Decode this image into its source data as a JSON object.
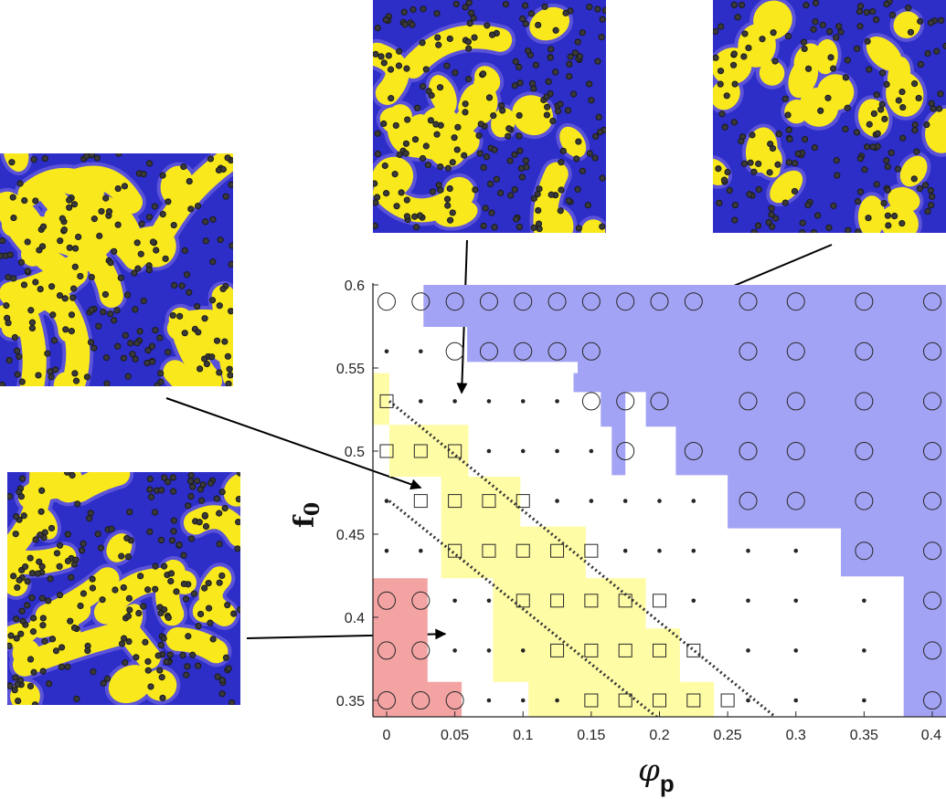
{
  "chart_data": {
    "type": "scatter",
    "title": "",
    "xlabel_symbol": "φ",
    "xlabel_subscript": "p",
    "ylabel_symbol": "f",
    "ylabel_subscript": "0",
    "xlim": [
      -0.01,
      0.41
    ],
    "ylim": [
      0.34,
      0.6
    ],
    "grid": false,
    "x_ticks": [
      0,
      0.05,
      0.1,
      0.15,
      0.2,
      0.25,
      0.3,
      0.35,
      0.4
    ],
    "x_tick_labels": [
      "0",
      "0.05",
      "0.1",
      "0.15",
      "0.2",
      "0.25",
      "0.3",
      "0.35",
      "0.4"
    ],
    "y_ticks": [
      0.35,
      0.4,
      0.45,
      0.5,
      0.55,
      0.6
    ],
    "y_tick_labels": [
      "0.35",
      "0.4",
      "0.45",
      "0.5",
      "0.55",
      "0.6"
    ],
    "x_grid_values": [
      0,
      0.025,
      0.05,
      0.075,
      0.1,
      0.125,
      0.15,
      0.175,
      0.2,
      0.225,
      0.25,
      0.3,
      0.35,
      0.4
    ],
    "y_grid_values": [
      0.35,
      0.38,
      0.41,
      0.44,
      0.47,
      0.5,
      0.53,
      0.56,
      0.59
    ],
    "region_colors": {
      "circle": "#a3a3f5",
      "square": "#fffca6",
      "red": "#f4a3a3"
    },
    "marker_color": "#262626",
    "region_bounds": {
      "red": [
        [
          -0.01,
          0.34
        ],
        [
          0.055,
          0.34
        ],
        [
          0.055,
          0.3611
        ],
        [
          0.03,
          0.3611
        ],
        [
          0.03,
          0.4235
        ],
        [
          -0.01,
          0.4235
        ]
      ],
      "square": [
        [
          -0.01,
          0.5469
        ],
        [
          0.002,
          0.5469
        ],
        [
          0.002,
          0.4846
        ],
        [
          0.04,
          0.4846
        ],
        [
          0.04,
          0.4235
        ],
        [
          0.078,
          0.4235
        ],
        [
          0.078,
          0.4162
        ],
        [
          0.078,
          0.3611
        ],
        [
          0.104,
          0.3611
        ],
        [
          0.104,
          0.34
        ],
        [
          0.24,
          0.34
        ],
        [
          0.24,
          0.3611
        ],
        [
          0.215,
          0.3611
        ],
        [
          0.215,
          0.3933
        ],
        [
          0.19,
          0.3933
        ],
        [
          0.19,
          0.4235
        ],
        [
          0.146,
          0.4235
        ],
        [
          0.146,
          0.4546
        ],
        [
          0.098,
          0.4546
        ],
        [
          0.098,
          0.4846
        ],
        [
          0.06,
          0.4846
        ],
        [
          0.06,
          0.5158
        ],
        [
          -0.01,
          0.5158
        ]
      ],
      "circle": [
        [
          0.027,
          0.6
        ],
        [
          0.41,
          0.6
        ],
        [
          0.41,
          0.34
        ],
        [
          0.379,
          0.34
        ],
        [
          0.379,
          0.4246
        ],
        [
          0.333,
          0.4246
        ],
        [
          0.333,
          0.4535
        ],
        [
          0.25,
          0.4535
        ],
        [
          0.25,
          0.4855
        ],
        [
          0.212,
          0.4855
        ],
        [
          0.212,
          0.5147
        ],
        [
          0.19,
          0.5147
        ],
        [
          0.19,
          0.5355
        ],
        [
          0.175,
          0.5355
        ],
        [
          0.175,
          0.4855
        ],
        [
          0.165,
          0.4855
        ],
        [
          0.165,
          0.5147
        ],
        [
          0.157,
          0.5147
        ],
        [
          0.157,
          0.5355
        ],
        [
          0.137,
          0.5355
        ],
        [
          0.137,
          0.5469
        ],
        [
          0.14,
          0.5469
        ],
        [
          0.14,
          0.5536
        ],
        [
          0.059,
          0.5536
        ],
        [
          0.059,
          0.5747
        ],
        [
          0.027,
          0.5747
        ]
      ]
    },
    "boundaries": [
      {
        "style": "dotted",
        "points": [
          [
            0.002,
            0.53
          ],
          [
            0.285,
            0.34
          ]
        ]
      },
      {
        "style": "dotted",
        "points": [
          [
            0.002,
            0.47
          ],
          [
            0.198,
            0.34
          ]
        ]
      }
    ],
    "series": [
      {
        "marker": "circle",
        "points": [
          [
            0,
            0.59
          ],
          [
            0.025,
            0.59
          ],
          [
            0.05,
            0.59
          ],
          [
            0.075,
            0.59
          ],
          [
            0.1,
            0.59
          ],
          [
            0.125,
            0.59
          ],
          [
            0.15,
            0.59
          ],
          [
            0.175,
            0.59
          ],
          [
            0.2,
            0.59
          ],
          [
            0.225,
            0.59
          ],
          [
            0.3,
            0.59
          ],
          [
            0.35,
            0.59
          ],
          [
            0.4,
            0.59
          ],
          [
            0.265,
            0.59
          ],
          [
            0.05,
            0.56
          ],
          [
            0.075,
            0.56
          ],
          [
            0.1,
            0.56
          ],
          [
            0.125,
            0.56
          ],
          [
            0.15,
            0.56
          ],
          [
            0.265,
            0.56
          ],
          [
            0.3,
            0.56
          ],
          [
            0.35,
            0.56
          ],
          [
            0.4,
            0.56
          ],
          [
            0.15,
            0.53
          ],
          [
            0.175,
            0.53
          ],
          [
            0.2,
            0.53
          ],
          [
            0.265,
            0.53
          ],
          [
            0.3,
            0.53
          ],
          [
            0.35,
            0.53
          ],
          [
            0.4,
            0.53
          ],
          [
            0.175,
            0.5
          ],
          [
            0.225,
            0.5
          ],
          [
            0.265,
            0.5
          ],
          [
            0.3,
            0.5
          ],
          [
            0.35,
            0.5
          ],
          [
            0.4,
            0.5
          ],
          [
            0.265,
            0.47
          ],
          [
            0.3,
            0.47
          ],
          [
            0.35,
            0.47
          ],
          [
            0.4,
            0.47
          ],
          [
            0.35,
            0.44
          ],
          [
            0.4,
            0.44
          ],
          [
            0,
            0.41
          ],
          [
            0.025,
            0.41
          ],
          [
            0.4,
            0.41
          ],
          [
            0,
            0.38
          ],
          [
            0.025,
            0.38
          ],
          [
            0.4,
            0.38
          ],
          [
            0,
            0.35
          ],
          [
            0.025,
            0.35
          ],
          [
            0.05,
            0.35
          ],
          [
            0.4,
            0.35
          ]
        ]
      },
      {
        "marker": "square",
        "points": [
          [
            0,
            0.53
          ],
          [
            0,
            0.5
          ],
          [
            0.025,
            0.5
          ],
          [
            0.05,
            0.5
          ],
          [
            0.025,
            0.47
          ],
          [
            0.05,
            0.47
          ],
          [
            0.075,
            0.47
          ],
          [
            0.1,
            0.47
          ],
          [
            0.05,
            0.44
          ],
          [
            0.075,
            0.44
          ],
          [
            0.1,
            0.44
          ],
          [
            0.125,
            0.44
          ],
          [
            0.15,
            0.44
          ],
          [
            0.1,
            0.41
          ],
          [
            0.125,
            0.41
          ],
          [
            0.15,
            0.41
          ],
          [
            0.175,
            0.41
          ],
          [
            0.2,
            0.41
          ],
          [
            0.125,
            0.38
          ],
          [
            0.15,
            0.38
          ],
          [
            0.175,
            0.38
          ],
          [
            0.2,
            0.38
          ],
          [
            0.225,
            0.38
          ],
          [
            0.15,
            0.35
          ],
          [
            0.175,
            0.35
          ],
          [
            0.2,
            0.35
          ],
          [
            0.225,
            0.35
          ],
          [
            0.25,
            0.35
          ]
        ]
      },
      {
        "marker": "dot",
        "points": [
          [
            0,
            0.56
          ],
          [
            0.025,
            0.56
          ],
          [
            0.025,
            0.53
          ],
          [
            0.05,
            0.53
          ],
          [
            0.075,
            0.53
          ],
          [
            0.1,
            0.53
          ],
          [
            0.125,
            0.53
          ],
          [
            0.075,
            0.5
          ],
          [
            0.1,
            0.5
          ],
          [
            0.125,
            0.5
          ],
          [
            0.15,
            0.5
          ],
          [
            0,
            0.47
          ],
          [
            0.125,
            0.47
          ],
          [
            0.15,
            0.47
          ],
          [
            0.175,
            0.47
          ],
          [
            0.2,
            0.47
          ],
          [
            0.225,
            0.47
          ],
          [
            0,
            0.44
          ],
          [
            0.025,
            0.44
          ],
          [
            0.175,
            0.44
          ],
          [
            0.2,
            0.44
          ],
          [
            0.225,
            0.44
          ],
          [
            0.265,
            0.44
          ],
          [
            0.3,
            0.44
          ],
          [
            0.05,
            0.41
          ],
          [
            0.075,
            0.41
          ],
          [
            0.225,
            0.41
          ],
          [
            0.265,
            0.41
          ],
          [
            0.3,
            0.41
          ],
          [
            0.35,
            0.41
          ],
          [
            0.05,
            0.38
          ],
          [
            0.075,
            0.38
          ],
          [
            0.1,
            0.38
          ],
          [
            0.265,
            0.38
          ],
          [
            0.3,
            0.38
          ],
          [
            0.35,
            0.38
          ],
          [
            0.075,
            0.35
          ],
          [
            0.1,
            0.35
          ],
          [
            0.125,
            0.35
          ],
          [
            0.265,
            0.35
          ],
          [
            0.3,
            0.35
          ],
          [
            0.35,
            0.35
          ]
        ]
      }
    ],
    "insets": [
      {
        "name": "inset-stripes-left",
        "pattern": "stripes",
        "arrow_target": [
          0.025,
          0.478
        ]
      },
      {
        "name": "inset-stripes-bottom",
        "pattern": "mixed",
        "arrow_target": [
          0.043,
          0.39
        ]
      },
      {
        "name": "inset-top-center",
        "pattern": "mixed-droplets",
        "arrow_target": [
          0.055,
          0.535
        ]
      },
      {
        "name": "inset-top-right",
        "pattern": "droplets",
        "arrow_target": [
          0.14,
          0.56
        ]
      }
    ],
    "inset_colors": {
      "background": "#2d2dc8",
      "domain": "#f8e81c",
      "edge": "#5a52d8",
      "particle": "#1a1a1a"
    }
  }
}
